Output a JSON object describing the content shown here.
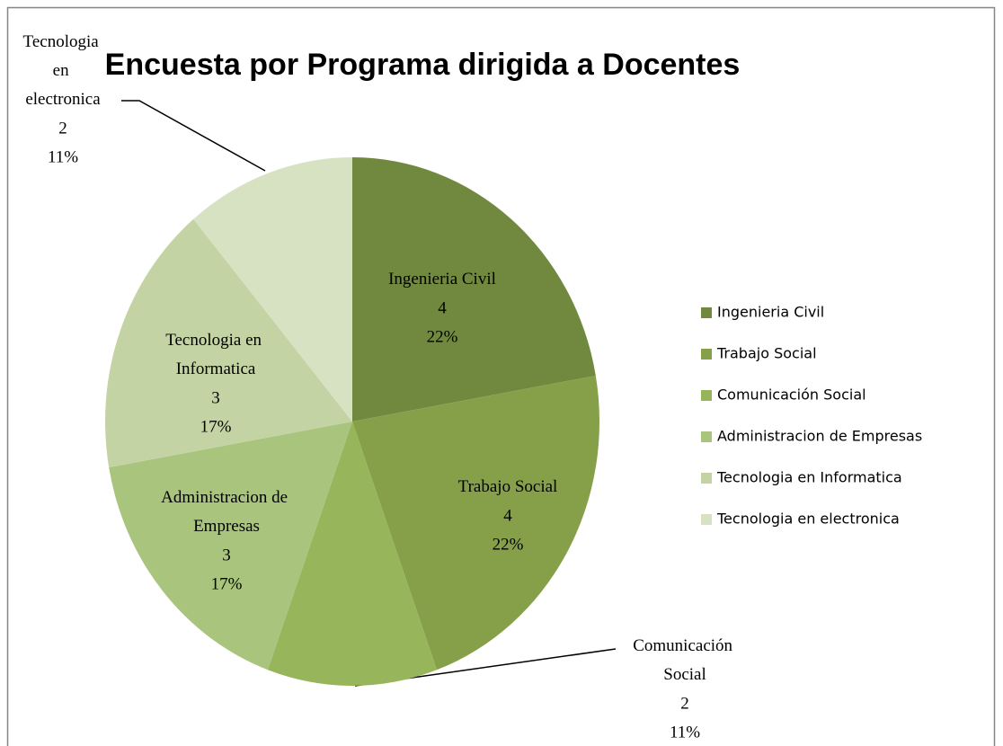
{
  "chart_data": {
    "type": "pie",
    "title": "Encuesta por Programa dirigida a Docentes",
    "categories": [
      "Ingenieria Civil",
      "Trabajo Social",
      "Comunicación Social",
      "Administracion de Empresas",
      "Tecnologia en Informatica",
      "Tecnologia en electronica"
    ],
    "values": [
      4,
      4,
      2,
      3,
      3,
      2
    ],
    "percentages": [
      22,
      22,
      11,
      17,
      17,
      11
    ],
    "percentage_labels": [
      "22%",
      "22%",
      "11%",
      "17%",
      "17%",
      "11%"
    ],
    "colors": [
      "#71893f",
      "#86a04a",
      "#97b55a",
      "#a9c47c",
      "#c3d3a4",
      "#d7e2c3"
    ],
    "legend": "right"
  }
}
